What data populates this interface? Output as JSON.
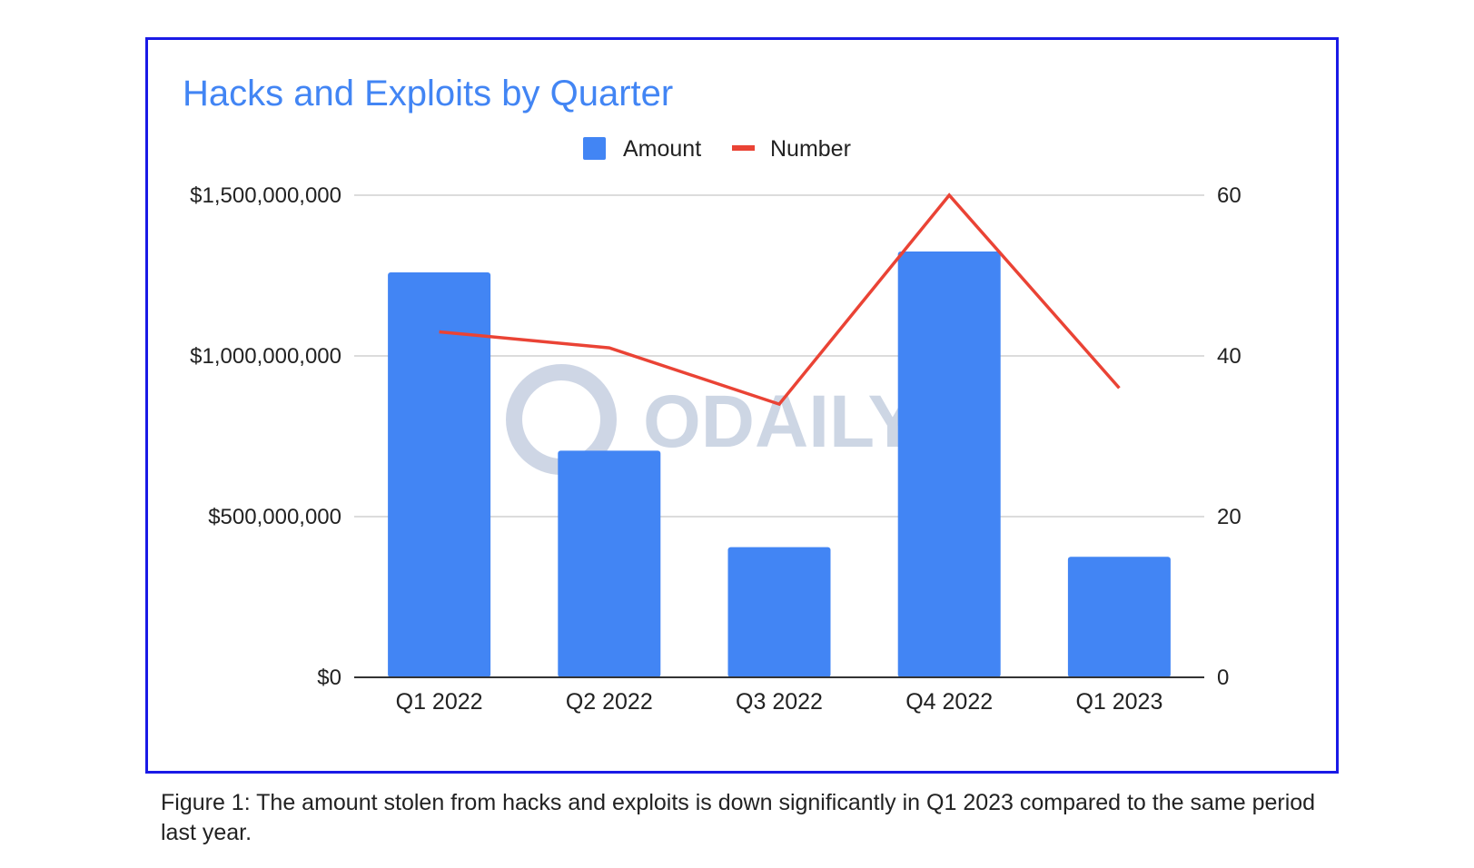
{
  "chart_data": {
    "type": "bar",
    "title": "Hacks and Exploits by Quarter",
    "categories": [
      "Q1 2022",
      "Q2 2022",
      "Q3 2022",
      "Q4 2022",
      "Q1 2023"
    ],
    "series": [
      {
        "name": "Amount",
        "type": "bar",
        "axis": "left",
        "color": "#4285f4",
        "values": [
          1260000000,
          705000000,
          405000000,
          1325000000,
          375000000
        ]
      },
      {
        "name": "Number",
        "type": "line",
        "axis": "right",
        "color": "#ea4335",
        "values": [
          43,
          41,
          34,
          60,
          36
        ]
      }
    ],
    "y_left": {
      "min": 0,
      "max": 1500000000,
      "ticks": [
        0,
        500000000,
        1000000000,
        1500000000
      ],
      "tick_labels": [
        "$0",
        "$500,000,000",
        "$1,000,000,000",
        "$1,500,000,000"
      ]
    },
    "y_right": {
      "min": 0,
      "max": 60,
      "ticks": [
        0,
        20,
        40,
        60
      ],
      "tick_labels": [
        "0",
        "20",
        "40",
        "60"
      ]
    },
    "legend_position": "top",
    "grid": true
  },
  "watermark": {
    "text": "ODAILY"
  },
  "caption": "Figure 1: The amount stolen from hacks and exploits is down significantly in Q1 2023 compared to the same period last year.",
  "colors": {
    "frame": "#1a1ae6",
    "title": "#4285f4",
    "bar": "#4285f4",
    "line": "#ea4335",
    "grid": "#d0d0d0"
  }
}
